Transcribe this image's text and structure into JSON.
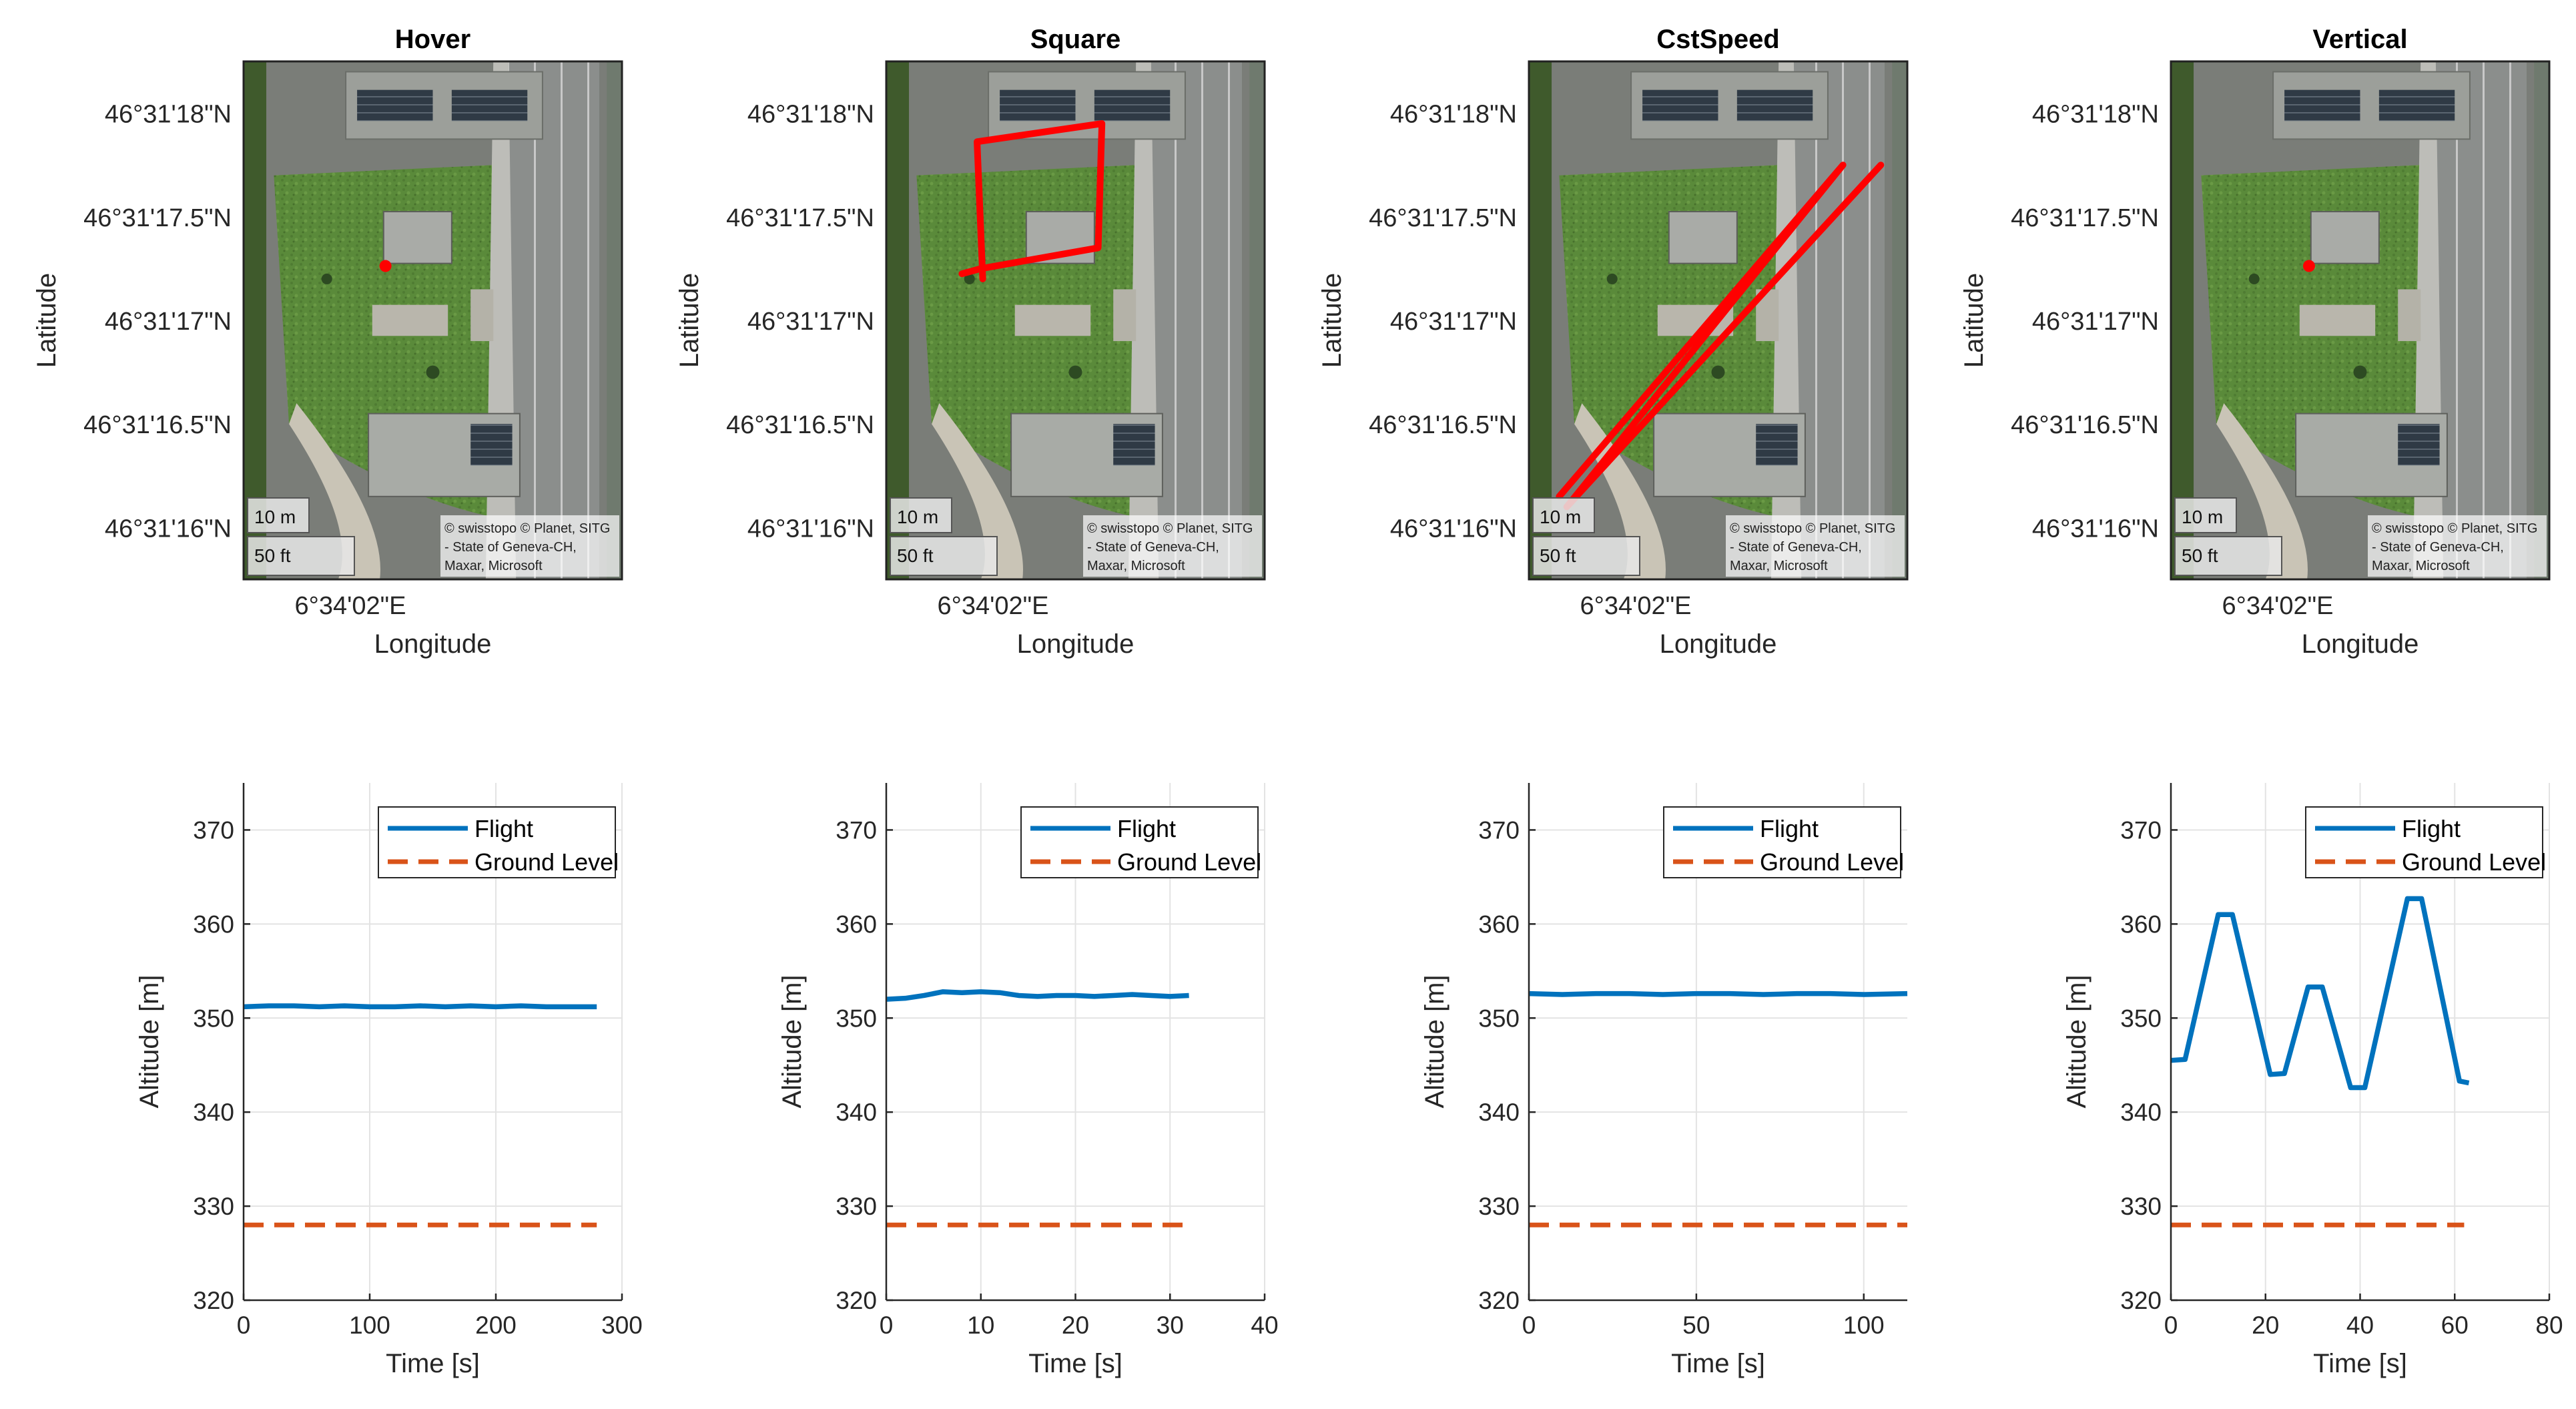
{
  "chart_data": [
    {
      "type": "map",
      "title": "Hover",
      "xlabel": "Longitude",
      "ylabel": "Latitude",
      "lat_ticks": [
        "46°31'18\"N",
        "46°31'17.5\"N",
        "46°31'17\"N",
        "46°31'16.5\"N",
        "46°31'16\"N"
      ],
      "lat_tick_values": [
        18.0,
        17.5,
        17.0,
        16.5,
        16.0
      ],
      "lon_ticks": [
        "6°34'02\"E"
      ],
      "lat_range": [
        15.75,
        18.25
      ],
      "scale_m": "10 m",
      "scale_ft": "50 ft",
      "attribution": [
        "© swisstopo © Planet, SITG",
        "- State of Geneva-CH,",
        "Maxar, Microsoft"
      ],
      "track_color": "#ff0000",
      "track": [
        [
          0.375,
          0.395
        ]
      ]
    },
    {
      "type": "map",
      "title": "Square",
      "xlabel": "Longitude",
      "ylabel": "Latitude",
      "lat_ticks": [
        "46°31'18\"N",
        "46°31'17.5\"N",
        "46°31'17\"N",
        "46°31'16.5\"N",
        "46°31'16\"N"
      ],
      "lat_tick_values": [
        18.0,
        17.5,
        17.0,
        16.5,
        16.0
      ],
      "lon_ticks": [
        "6°34'02\"E"
      ],
      "lat_range": [
        15.75,
        18.25
      ],
      "scale_m": "10 m",
      "scale_ft": "50 ft",
      "attribution": [
        "© swisstopo © Planet, SITG",
        "- State of Geneva-CH,",
        "Maxar, Microsoft"
      ],
      "track_color": "#ff0000",
      "track": [
        [
          0.2,
          0.41
        ],
        [
          0.25,
          0.4
        ],
        [
          0.56,
          0.36
        ],
        [
          0.57,
          0.12
        ],
        [
          0.24,
          0.155
        ],
        [
          0.255,
          0.42
        ]
      ]
    },
    {
      "type": "map",
      "title": "CstSpeed",
      "xlabel": "Longitude",
      "ylabel": "Latitude",
      "lat_ticks": [
        "46°31'18\"N",
        "46°31'17.5\"N",
        "46°31'17\"N",
        "46°31'16.5\"N",
        "46°31'16\"N"
      ],
      "lat_tick_values": [
        18.0,
        17.5,
        17.0,
        16.5,
        16.0
      ],
      "lon_ticks": [
        "6°34'02\"E"
      ],
      "lat_range": [
        15.75,
        18.25
      ],
      "scale_m": "10 m",
      "scale_ft": "50 ft",
      "attribution": [
        "© swisstopo © Planet, SITG",
        "- State of Geneva-CH,",
        "Maxar, Microsoft"
      ],
      "track_color": "#ff0000",
      "track": [
        [
          0.08,
          0.84
        ],
        [
          0.83,
          0.2
        ],
        [
          0.1,
          0.86
        ],
        [
          0.93,
          0.2
        ]
      ]
    },
    {
      "type": "map",
      "title": "Vertical",
      "xlabel": "Longitude",
      "ylabel": "Latitude",
      "lat_ticks": [
        "46°31'18\"N",
        "46°31'17.5\"N",
        "46°31'17\"N",
        "46°31'16.5\"N",
        "46°31'16\"N"
      ],
      "lat_tick_values": [
        18.0,
        17.5,
        17.0,
        16.5,
        16.0
      ],
      "lon_ticks": [
        "6°34'02\"E"
      ],
      "lat_range": [
        15.75,
        18.25
      ],
      "scale_m": "10 m",
      "scale_ft": "50 ft",
      "attribution": [
        "© swisstopo © Planet, SITG",
        "- State of Geneva-CH,",
        "Maxar, Microsoft"
      ],
      "track_color": "#ff0000",
      "track": [
        [
          0.365,
          0.395
        ]
      ]
    },
    {
      "type": "line",
      "xlabel": "Time [s]",
      "ylabel": "Altitude [m]",
      "xlim": [
        0,
        300
      ],
      "ylim": [
        320,
        375
      ],
      "xticks": [
        0,
        100,
        200,
        300
      ],
      "yticks": [
        320,
        330,
        340,
        350,
        360,
        370
      ],
      "grid": true,
      "legend_position": "top-right",
      "series": [
        {
          "name": "Flight",
          "color": "#0072bd",
          "style": "solid",
          "x": [
            0,
            20,
            40,
            60,
            80,
            100,
            120,
            140,
            160,
            180,
            200,
            220,
            240,
            260,
            280
          ],
          "y": [
            351.2,
            351.3,
            351.3,
            351.2,
            351.3,
            351.2,
            351.2,
            351.3,
            351.2,
            351.3,
            351.2,
            351.3,
            351.2,
            351.2,
            351.2
          ]
        },
        {
          "name": "Ground Level",
          "color": "#d95319",
          "style": "dashed",
          "x": [
            0,
            280
          ],
          "y": [
            328,
            328
          ]
        }
      ]
    },
    {
      "type": "line",
      "xlabel": "Time [s]",
      "ylabel": "Altitude [m]",
      "xlim": [
        0,
        40
      ],
      "ylim": [
        320,
        375
      ],
      "xticks": [
        0,
        10,
        20,
        30,
        40
      ],
      "yticks": [
        320,
        330,
        340,
        350,
        360,
        370
      ],
      "grid": true,
      "legend_position": "top-right",
      "series": [
        {
          "name": "Flight",
          "color": "#0072bd",
          "style": "solid",
          "x": [
            0,
            2,
            4,
            6,
            8,
            10,
            12,
            14,
            16,
            18,
            20,
            22,
            24,
            26,
            28,
            30,
            32
          ],
          "y": [
            352.0,
            352.1,
            352.4,
            352.8,
            352.7,
            352.8,
            352.7,
            352.4,
            352.3,
            352.4,
            352.4,
            352.3,
            352.4,
            352.5,
            352.4,
            352.3,
            352.4
          ]
        },
        {
          "name": "Ground Level",
          "color": "#d95319",
          "style": "dashed",
          "x": [
            0,
            32
          ],
          "y": [
            328,
            328
          ]
        }
      ]
    },
    {
      "type": "line",
      "xlabel": "Time [s]",
      "ylabel": "Altitude [m]",
      "xlim": [
        0,
        113
      ],
      "ylim": [
        320,
        375
      ],
      "xticks": [
        0,
        50,
        100
      ],
      "yticks": [
        320,
        330,
        340,
        350,
        360,
        370
      ],
      "grid": true,
      "legend_position": "top-right",
      "series": [
        {
          "name": "Flight",
          "color": "#0072bd",
          "style": "solid",
          "x": [
            0,
            10,
            20,
            30,
            40,
            50,
            60,
            70,
            80,
            90,
            100,
            113
          ],
          "y": [
            352.6,
            352.5,
            352.6,
            352.6,
            352.5,
            352.6,
            352.6,
            352.5,
            352.6,
            352.6,
            352.5,
            352.6
          ]
        },
        {
          "name": "Ground Level",
          "color": "#d95319",
          "style": "dashed",
          "x": [
            0,
            113
          ],
          "y": [
            328,
            328
          ]
        }
      ]
    },
    {
      "type": "line",
      "xlabel": "Time [s]",
      "ylabel": "Altitude [m]",
      "xlim": [
        0,
        80
      ],
      "ylim": [
        320,
        375
      ],
      "xticks": [
        0,
        20,
        40,
        60,
        80
      ],
      "yticks": [
        320,
        330,
        340,
        350,
        360,
        370
      ],
      "grid": true,
      "legend_position": "top-right",
      "series": [
        {
          "name": "Flight",
          "color": "#0072bd",
          "style": "solid",
          "x": [
            0,
            3,
            10,
            13,
            21,
            24,
            29,
            32,
            38,
            41,
            50,
            53,
            61,
            63
          ],
          "y": [
            345.5,
            345.6,
            361,
            361,
            344.0,
            344.1,
            353.3,
            353.3,
            342.6,
            342.6,
            362.7,
            362.7,
            343.3,
            343.1
          ]
        },
        {
          "name": "Ground Level",
          "color": "#d95319",
          "style": "dashed",
          "x": [
            0,
            62
          ],
          "y": [
            328,
            328
          ]
        }
      ]
    }
  ]
}
